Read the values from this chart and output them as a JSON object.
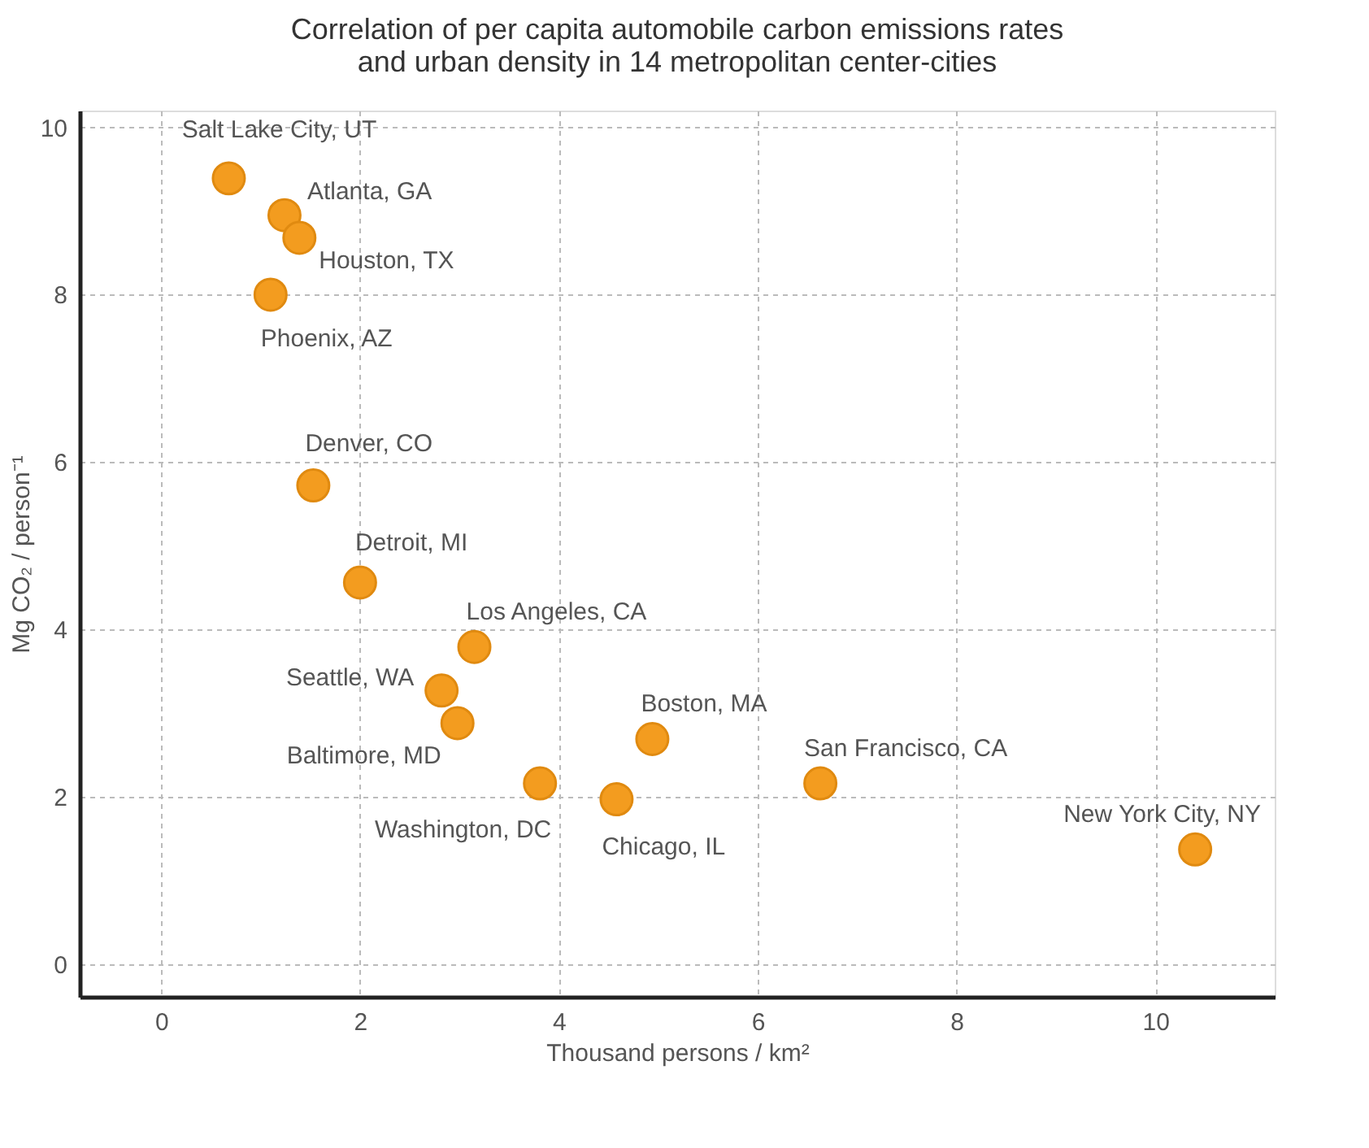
{
  "chart_data": {
    "type": "scatter",
    "title": "Correlation of per capita automobile carbon emissions rates\nand urban density in 14 metropolitan center-cities",
    "xlabel": "Thousand persons / km²",
    "ylabel": "Mg CO₂ / person⁻¹",
    "x": [
      0.68,
      1.24,
      1.39,
      1.1,
      1.53,
      2.0,
      3.15,
      2.82,
      2.98,
      3.81,
      4.58,
      4.94,
      6.63,
      10.4
    ],
    "series": [
      {
        "color": "#f39c1f",
        "values": [
          9.39,
          8.95,
          8.68,
          8.0,
          5.72,
          4.56,
          3.79,
          3.27,
          2.88,
          2.16,
          1.97,
          2.69,
          2.16,
          1.37
        ]
      }
    ],
    "annotations": [
      {
        "text": "Salt Lake City, UT",
        "x": 0.68,
        "y": 9.39
      },
      {
        "text": "Atlanta, GA",
        "x": 1.24,
        "y": 8.95
      },
      {
        "text": "Houston, TX",
        "x": 1.39,
        "y": 8.68
      },
      {
        "text": "Phoenix, AZ",
        "x": 1.1,
        "y": 8.0
      },
      {
        "text": "Denver, CO",
        "x": 1.53,
        "y": 5.72
      },
      {
        "text": "Detroit, MI",
        "x": 2.0,
        "y": 4.56
      },
      {
        "text": "Los Angeles, CA",
        "x": 3.15,
        "y": 3.79
      },
      {
        "text": "Seattle, WA",
        "x": 2.82,
        "y": 3.27
      },
      {
        "text": "Baltimore, MD",
        "x": 2.98,
        "y": 2.88
      },
      {
        "text": "Washington, DC",
        "x": 3.81,
        "y": 2.16
      },
      {
        "text": "Chicago, IL",
        "x": 4.58,
        "y": 1.97
      },
      {
        "text": "Boston, MA",
        "x": 4.94,
        "y": 2.69
      },
      {
        "text": "San Francisco, CA",
        "x": 6.63,
        "y": 2.16
      },
      {
        "text": "New York City, NY",
        "x": 10.4,
        "y": 1.37
      }
    ],
    "xlim": [
      -0.82,
      11.2
    ],
    "ylim": [
      -0.39,
      10.2
    ],
    "xticks": [
      0,
      2,
      4,
      6,
      8,
      10
    ],
    "yticks": [
      0,
      2,
      4,
      6,
      8,
      10
    ],
    "grid": true,
    "marker": "circle"
  }
}
